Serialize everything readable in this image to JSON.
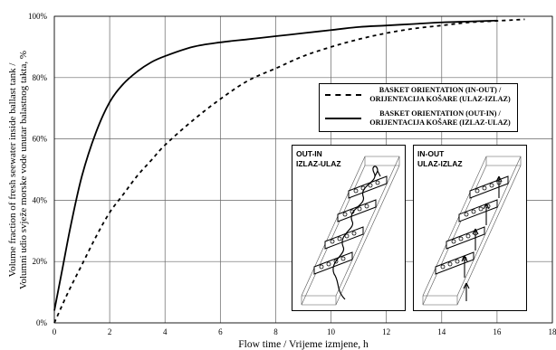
{
  "chart_data": {
    "type": "line",
    "xlabel": "Flow time / Vrijeme izmjene, h",
    "ylabel_line1": "Volume fraction of fresh seewater inside ballast tank /",
    "ylabel_line2": "Volumni udio svježe morske vode unutar balastnog takta, %",
    "xlim": [
      0,
      18
    ],
    "ylim": [
      0,
      100
    ],
    "grid": true,
    "x_ticks": [
      "0",
      "2",
      "4",
      "6",
      "8",
      "10",
      "12",
      "14",
      "16",
      "18"
    ],
    "y_ticks": [
      "0%",
      "20%",
      "40%",
      "60%",
      "80%",
      "100%"
    ],
    "legend_position": "right",
    "series": [
      {
        "name_line1": "BASKET ORIENTATION (IN-OUT) /",
        "name_line2": "ORIJENTACIJA KOŠARE (ULAZ-IZLAZ)",
        "style": "dashed",
        "x": [
          0,
          0.5,
          1,
          1.5,
          2,
          2.5,
          3,
          3.5,
          4,
          5,
          6,
          7,
          8,
          9,
          10,
          11,
          12,
          13,
          14,
          15,
          16,
          17
        ],
        "y": [
          0,
          10,
          19,
          28,
          36,
          42,
          48,
          53,
          58,
          66,
          73,
          79,
          83,
          87,
          90,
          92.5,
          94.5,
          96,
          97,
          98,
          98.5,
          99
        ]
      },
      {
        "name_line1": "BASKET ORIENTATION (OUT-IN) /",
        "name_line2": "ORIJENTACIJA KOŠARE (IZLAZ-ULAZ)",
        "style": "solid",
        "x": [
          0,
          0.3,
          0.6,
          1,
          1.5,
          2,
          2.5,
          3,
          3.5,
          4,
          5,
          6,
          7,
          8,
          9,
          10,
          11,
          12,
          13,
          14,
          15,
          16
        ],
        "y": [
          4,
          18,
          32,
          48,
          62,
          72,
          78,
          82,
          85,
          87,
          90,
          91.5,
          92.5,
          93.5,
          94.5,
          95.5,
          96.5,
          97,
          97.5,
          98,
          98.3,
          98.6
        ]
      }
    ]
  },
  "insets": [
    {
      "label_line1": "OUT-IN",
      "label_line2": "IZLAZ-ULAZ"
    },
    {
      "label_line1": "IN-OUT",
      "label_line2": "ULAZ-IZLAZ"
    }
  ]
}
